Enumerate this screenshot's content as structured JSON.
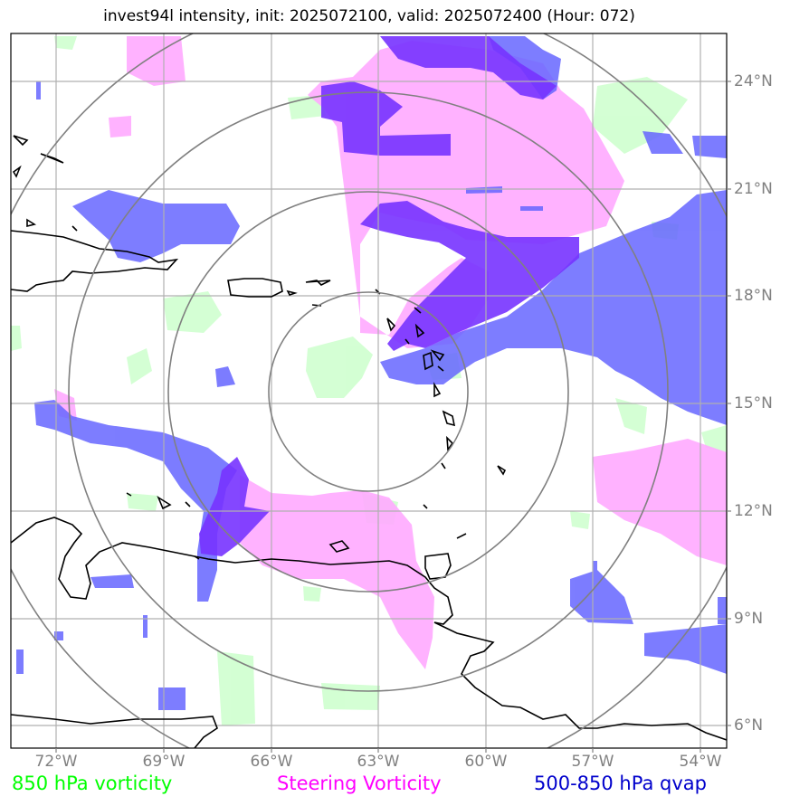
{
  "title": "invest94l intensity, init: 2025072100, valid: 2025072400 (Hour: 072)",
  "lat_labels": [
    "24°N",
    "21°N",
    "18°N",
    "15°N",
    "12°N",
    "9°N",
    "6°N"
  ],
  "lon_labels": [
    "72°W",
    "69°W",
    "66°W",
    "63°W",
    "60°W",
    "57°W",
    "54°W"
  ],
  "legend": [
    {
      "label": "850 hPa vorticity",
      "color": "#00ff00"
    },
    {
      "label": "Steering Vorticity",
      "color": "#ff00ff"
    },
    {
      "label": "500-850 hPa qvap",
      "color": "#0000cc"
    }
  ],
  "colors": {
    "vorticity_850": "#ccffcc",
    "steering_vorticity": "#ffaaff",
    "qvap": "#6666ff",
    "qvap_strong": "#7733ff",
    "grid": "#b0b0b0",
    "range_rings": "#808080",
    "coastline": "#000000"
  }
}
